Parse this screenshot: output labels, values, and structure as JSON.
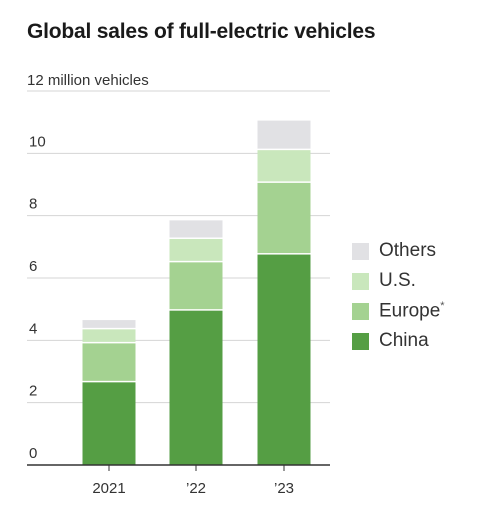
{
  "title": "Global sales of full-electric vehicles",
  "chart_data": {
    "type": "bar",
    "stacked": true,
    "title": "Global sales of full-electric vehicles",
    "unit_label": "12 million vehicles",
    "categories": [
      "2021",
      "’22",
      "’23"
    ],
    "ylim": [
      0,
      12
    ],
    "yticks": [
      0,
      2,
      4,
      6,
      8,
      10
    ],
    "grid": true,
    "legend_position": "right",
    "series": [
      {
        "name": "China",
        "values": [
          2.7,
          5.0,
          6.8
        ],
        "color": "#559e44"
      },
      {
        "name": "Europe",
        "note": "*",
        "values": [
          1.25,
          1.55,
          2.3
        ],
        "color": "#a4d291"
      },
      {
        "name": "U.S.",
        "values": [
          0.45,
          0.75,
          1.05
        ],
        "color": "#c9e7bc"
      },
      {
        "name": "Others",
        "values": [
          0.25,
          0.55,
          0.9
        ],
        "color": "#e1e1e4"
      }
    ]
  }
}
